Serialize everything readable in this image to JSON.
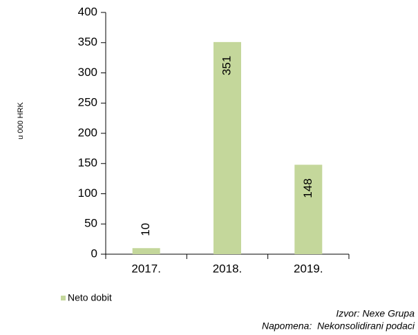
{
  "chart_data": {
    "type": "bar",
    "y_axis_label": "u 000 HRK",
    "categories": [
      "2017.",
      "2018.",
      "2019."
    ],
    "series": [
      {
        "name": "Neto dobit",
        "color": "#c4d79b",
        "values": [
          10,
          351,
          148
        ]
      }
    ],
    "ylim": [
      0,
      400
    ],
    "yticks": [
      0,
      50,
      100,
      150,
      200,
      250,
      300,
      350,
      400
    ],
    "grid": false,
    "legend": "bottom-left",
    "notes": [
      "Izvor: Nexe Grupa",
      "Napomena:  Nekonsolidirani podaci"
    ]
  }
}
